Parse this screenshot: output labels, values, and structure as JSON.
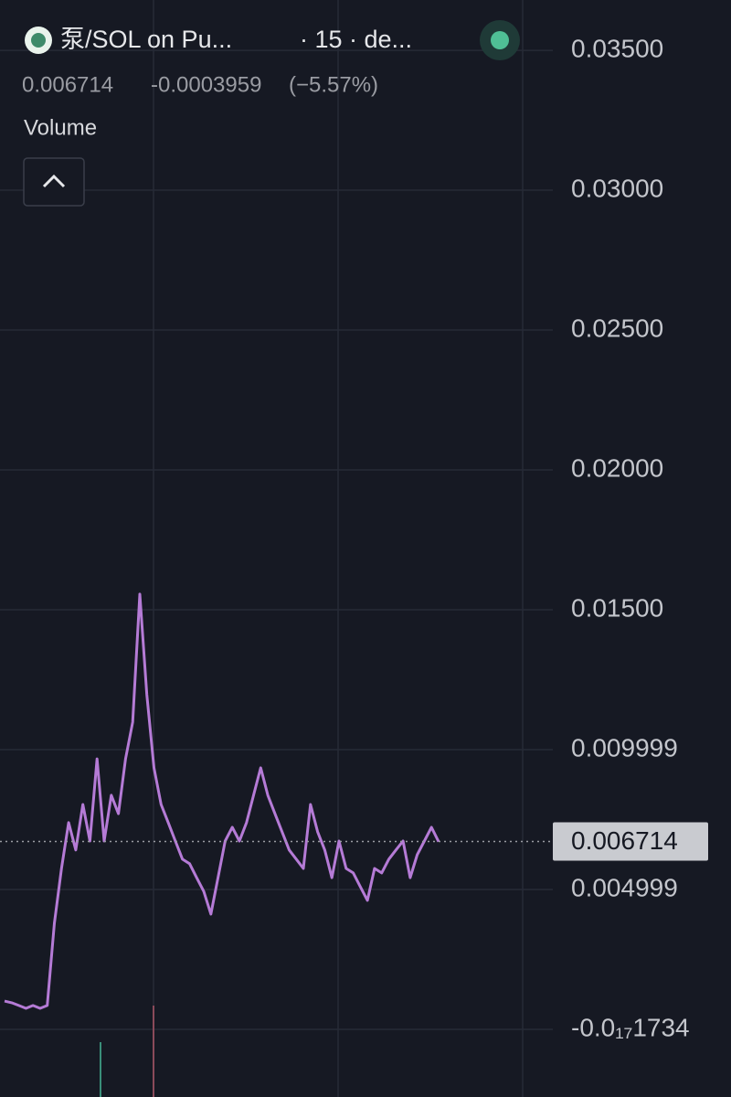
{
  "header": {
    "pair": "泵/SOL on Pu...",
    "interval": "· 15 · de...",
    "change": "-0.0003959",
    "change_percent": "(−5.57%)",
    "volume_label": "Volume"
  },
  "chart_data": {
    "type": "line",
    "last_price": 0.006714,
    "color": "#b57bd6",
    "values": [
      0.00101,
      0.00095,
      0.00085,
      0.00075,
      0.00085,
      0.00075,
      0.00085,
      0.00379,
      0.00575,
      0.00739,
      0.00641,
      0.00804,
      0.00673,
      0.00967,
      0.00673,
      0.00837,
      0.00771,
      0.00967,
      0.01098,
      0.01556,
      0.01196,
      0.00935,
      0.00804,
      0.00739,
      0.00673,
      0.00608,
      0.00592,
      0.00542,
      0.00493,
      0.00412,
      0.00542,
      0.00673,
      0.00722,
      0.00673,
      0.00739,
      0.00837,
      0.00935,
      0.00837,
      0.00771,
      0.00706,
      0.00641,
      0.00608,
      0.00575,
      0.00804,
      0.00706,
      0.00641,
      0.00542,
      0.00673,
      0.00575,
      0.00559,
      0.0051,
      0.00461,
      0.00575,
      0.00559,
      0.00608,
      0.00641,
      0.00673,
      0.00542,
      0.00624,
      0.00673,
      0.00722,
      0.00671
    ],
    "ylim": [
      -0.00242,
      0.0368
    ],
    "yticks": [
      {
        "value": -1.734e-20,
        "label": "-0.0₁₇1734"
      },
      {
        "value": 0.004999,
        "label": "0.004999"
      },
      {
        "value": 0.009999,
        "label": "0.009999"
      },
      {
        "value": 0.015,
        "label": "0.01500"
      },
      {
        "value": 0.02,
        "label": "0.02000"
      },
      {
        "value": 0.025,
        "label": "0.02500"
      },
      {
        "value": 0.03,
        "label": "0.03000"
      },
      {
        "value": 0.035,
        "label": "0.03500"
      }
    ],
    "grid": true
  }
}
